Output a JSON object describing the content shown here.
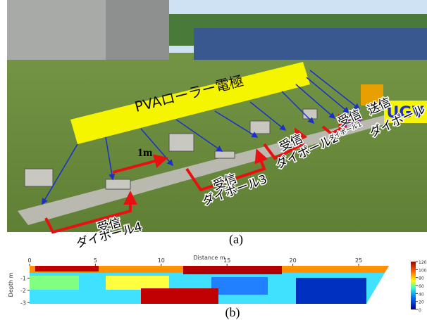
{
  "photo": {
    "banner": "PVAローラー電極",
    "spacing": "1m",
    "vehicle": "UGV",
    "labels": [
      {
        "role": "受信",
        "name": "ダイポール4"
      },
      {
        "role": "受信",
        "name": "ダイポール3"
      },
      {
        "role": "受信",
        "name": "ダイポール2"
      },
      {
        "role": "受信",
        "name": "ダイポール1"
      },
      {
        "role": "送信",
        "name": "ダイポール"
      }
    ]
  },
  "captions": [
    "(a)",
    "(b)"
  ],
  "section": {
    "x_label": "Distance m",
    "xlim": [
      0,
      27.3
    ],
    "xticks": [
      0,
      5,
      10,
      15,
      20,
      25
    ],
    "y_label": "Depth m",
    "ylim": [
      -3.1,
      0
    ],
    "yticks": [
      -1,
      -2,
      -3
    ],
    "colorbar": {
      "lim": [
        0,
        120
      ],
      "ticks": [
        0,
        20,
        40,
        60,
        80,
        100,
        120
      ]
    }
  }
}
